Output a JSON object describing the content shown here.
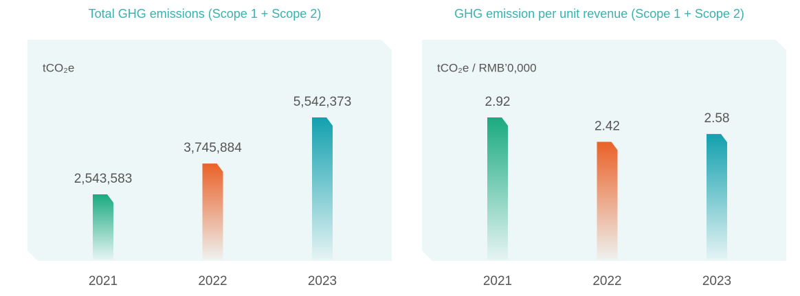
{
  "chart_data": [
    {
      "type": "bar",
      "title": "Total GHG emissions (Scope 1 + Scope 2)",
      "unit_label": "tCO₂e",
      "categories": [
        "2021",
        "2022",
        "2023"
      ],
      "values": [
        2543583,
        3745884,
        5542373
      ],
      "value_labels": [
        "2,543,583",
        "3,745,884",
        "5,542,373"
      ],
      "colors": [
        "#1aaa80",
        "#ea6128",
        "#12a0ae"
      ]
    },
    {
      "type": "bar",
      "title": "GHG emission per unit revenue (Scope 1 + Scope 2)",
      "unit_label": "tCO₂e / RMB’0,000",
      "categories": [
        "2021",
        "2022",
        "2023"
      ],
      "values": [
        2.92,
        2.42,
        2.58
      ],
      "colors": [
        "#1aaa80",
        "#ea6128",
        "#12a0ae"
      ]
    }
  ]
}
